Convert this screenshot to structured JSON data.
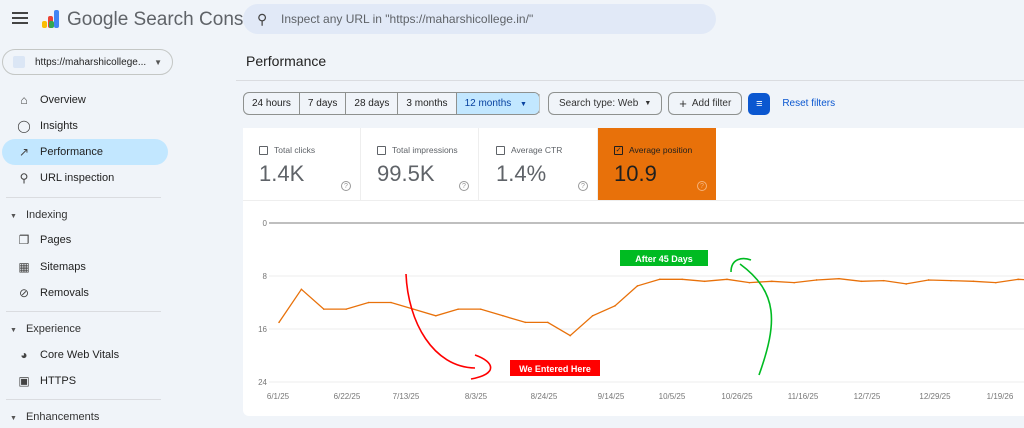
{
  "header": {
    "app_name": "Google Search Console",
    "search_placeholder": "Inspect any URL in \"https://maharshicollege.in/\""
  },
  "property": {
    "label": "https://maharshicollege..."
  },
  "sidebar": {
    "top": [
      {
        "label": "Overview",
        "icon": "home-icon"
      },
      {
        "label": "Insights",
        "icon": "lightbulb-icon"
      },
      {
        "label": "Performance",
        "icon": "trending-up-icon",
        "active": true
      },
      {
        "label": "URL inspection",
        "icon": "search-icon"
      }
    ],
    "indexing": {
      "title": "Indexing",
      "items": [
        {
          "label": "Pages",
          "icon": "pages-icon"
        },
        {
          "label": "Sitemaps",
          "icon": "sitemap-icon"
        },
        {
          "label": "Removals",
          "icon": "eye-off-icon"
        }
      ]
    },
    "experience": {
      "title": "Experience",
      "items": [
        {
          "label": "Core Web Vitals",
          "icon": "gauge-icon"
        },
        {
          "label": "HTTPS",
          "icon": "lock-icon"
        }
      ]
    },
    "enhancements": {
      "title": "Enhancements"
    }
  },
  "page": {
    "title": "Performance"
  },
  "toolbar": {
    "ranges": [
      "24 hours",
      "7 days",
      "28 days",
      "3 months",
      "12 months"
    ],
    "selected_range": "12 months",
    "search_type": "Search type: Web",
    "add_filter": "Add filter",
    "reset": "Reset filters"
  },
  "metrics": [
    {
      "label": "Total clicks",
      "value": "1.4K",
      "checked": false
    },
    {
      "label": "Total impressions",
      "value": "99.5K",
      "checked": false
    },
    {
      "label": "Average CTR",
      "value": "1.4%",
      "checked": false
    },
    {
      "label": "Average position",
      "value": "10.9",
      "checked": true
    }
  ],
  "colors": {
    "accent": "#0b57d0",
    "position": "#e8710a",
    "selected_nav": "#c2e7ff",
    "annotation_red": "#ff0000",
    "annotation_green": "#00bb22"
  },
  "chart_data": {
    "type": "line",
    "yaxis_reversed": true,
    "ylim": [
      0,
      24
    ],
    "yticks": [
      "0",
      "8",
      "16",
      "24"
    ],
    "xticks": [
      "6/1/25",
      "6/22/25",
      "7/13/25",
      "8/3/25",
      "8/24/25",
      "9/14/25",
      "10/5/25",
      "10/26/25",
      "11/16/25",
      "12/7/25",
      "12/29/25",
      "1/19/26"
    ],
    "grid": true,
    "series": [
      {
        "name": "Average position",
        "color": "#e8710a",
        "x": [
          "2025-06-01",
          "2025-06-08",
          "2025-06-15",
          "2025-06-22",
          "2025-06-29",
          "2025-07-06",
          "2025-07-13",
          "2025-07-20",
          "2025-07-27",
          "2025-08-03",
          "2025-08-10",
          "2025-08-17",
          "2025-08-24",
          "2025-08-31",
          "2025-09-07",
          "2025-09-14",
          "2025-09-21",
          "2025-09-28",
          "2025-10-05",
          "2025-10-12",
          "2025-10-19",
          "2025-10-26",
          "2025-11-02",
          "2025-11-09",
          "2025-11-16",
          "2025-11-23",
          "2025-11-30",
          "2025-12-07",
          "2025-12-14",
          "2025-12-21",
          "2025-12-28",
          "2026-01-04",
          "2026-01-11",
          "2026-01-18",
          "2026-01-25"
        ],
        "values": [
          15,
          10,
          13,
          13,
          12,
          12,
          13,
          14,
          13,
          13,
          14,
          15,
          15,
          17,
          14,
          12.5,
          9.5,
          8.5,
          8.5,
          8.8,
          8.5,
          9,
          8.8,
          9,
          8.6,
          8.4,
          8.8,
          8.7,
          9.2,
          8.6,
          8.7,
          8.8,
          9,
          8.5,
          8.7
        ]
      }
    ],
    "annotations": [
      {
        "text": "We Entered Here",
        "color": "#ff0000"
      },
      {
        "text": "After 45 Days",
        "color": "#00bb22"
      }
    ]
  }
}
